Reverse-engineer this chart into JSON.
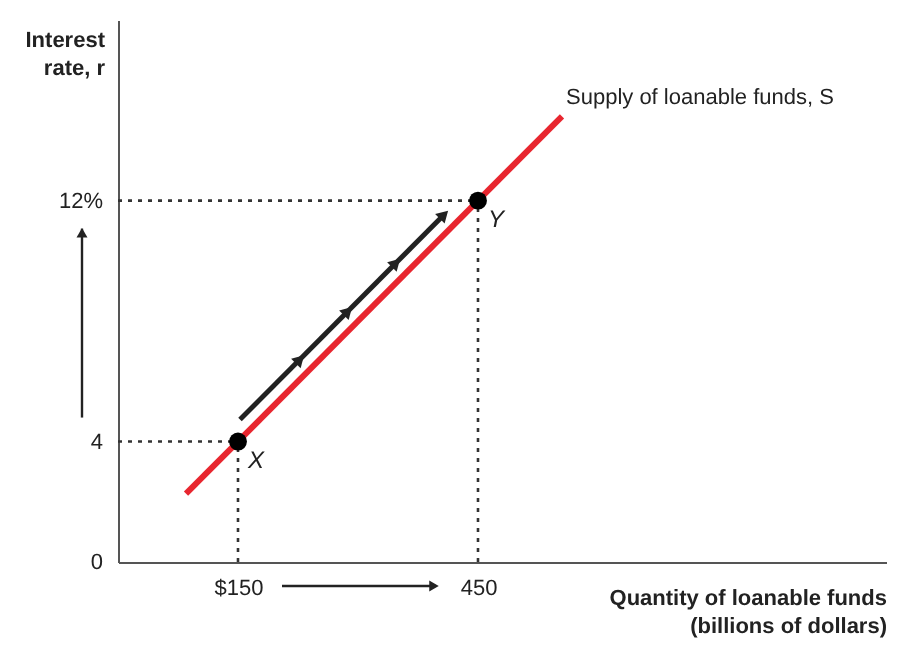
{
  "chart_data": {
    "type": "line",
    "xlabel": "Quantity of loanable funds\n(billions of dollars)",
    "ylabel": "Interest\nrate, r",
    "xlim": [
      0,
      960
    ],
    "ylim": [
      0,
      18
    ],
    "xticks": [
      {
        "value": 150,
        "label": "$150"
      },
      450
    ],
    "yticks": [
      0,
      4,
      {
        "value": 12,
        "label": "12%"
      }
    ],
    "series": [
      {
        "name": "Supply of loanable funds, S",
        "color": "#e8262f",
        "x": [
          85,
          555
        ],
        "values": [
          2.27,
          14.8
        ]
      },
      {
        "type": "scatter",
        "color": "#000000",
        "marker": "circle",
        "x": [
          150,
          450
        ],
        "values": [
          4,
          12
        ]
      }
    ],
    "annotations": [
      {
        "text": "X",
        "x": 150,
        "y": 4
      },
      {
        "text": "Y",
        "x": 450,
        "y": 12
      }
    ]
  }
}
